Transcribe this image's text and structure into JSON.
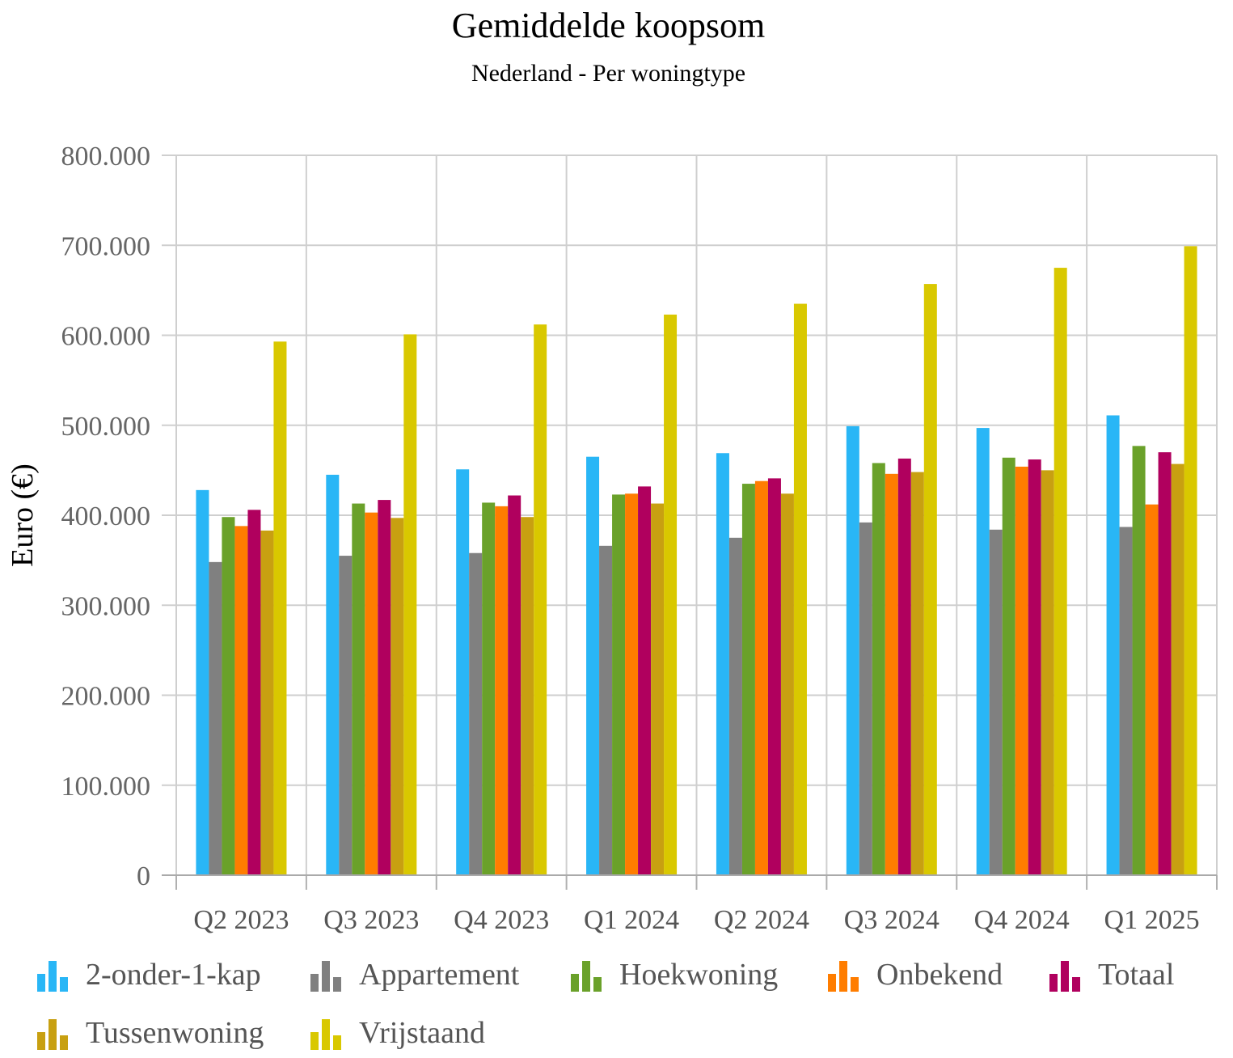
{
  "chart_data": {
    "type": "bar",
    "title": "Gemiddelde koopsom",
    "subtitle": "Nederland - Per woningtype",
    "ylabel": "Euro (€)",
    "xlabel": "",
    "ylim": [
      0,
      800000
    ],
    "yticks": [
      0,
      100000,
      200000,
      300000,
      400000,
      500000,
      600000,
      700000,
      800000
    ],
    "ytick_labels": [
      "0",
      "100.000",
      "200.000",
      "300.000",
      "400.000",
      "500.000",
      "600.000",
      "700.000",
      "800.000"
    ],
    "grid": true,
    "legend_position": "bottom",
    "categories": [
      "Q2 2023",
      "Q3 2023",
      "Q4 2023",
      "Q1 2024",
      "Q2 2024",
      "Q3 2024",
      "Q4 2024",
      "Q1 2025"
    ],
    "series": [
      {
        "name": "2-onder-1-kap",
        "color": "#29b6f6",
        "values": [
          428000,
          445000,
          451000,
          465000,
          469000,
          499000,
          497000,
          511000
        ]
      },
      {
        "name": "Appartement",
        "color": "#808080",
        "values": [
          348000,
          355000,
          358000,
          366000,
          375000,
          392000,
          384000,
          387000
        ]
      },
      {
        "name": "Hoekwoning",
        "color": "#6aa12a",
        "values": [
          398000,
          413000,
          414000,
          423000,
          435000,
          458000,
          464000,
          477000
        ]
      },
      {
        "name": "Onbekend",
        "color": "#ff7d00",
        "values": [
          388000,
          403000,
          410000,
          424000,
          438000,
          446000,
          454000,
          412000
        ]
      },
      {
        "name": "Totaal",
        "color": "#b0005e",
        "values": [
          406000,
          417000,
          422000,
          432000,
          441000,
          463000,
          462000,
          470000
        ]
      },
      {
        "name": "Tussenwoning",
        "color": "#c8a011",
        "values": [
          383000,
          397000,
          398000,
          413000,
          424000,
          448000,
          450000,
          457000
        ]
      },
      {
        "name": "Vrijstaand",
        "color": "#d9c800",
        "values": [
          593000,
          601000,
          612000,
          623000,
          635000,
          657000,
          675000,
          699000
        ]
      }
    ]
  }
}
